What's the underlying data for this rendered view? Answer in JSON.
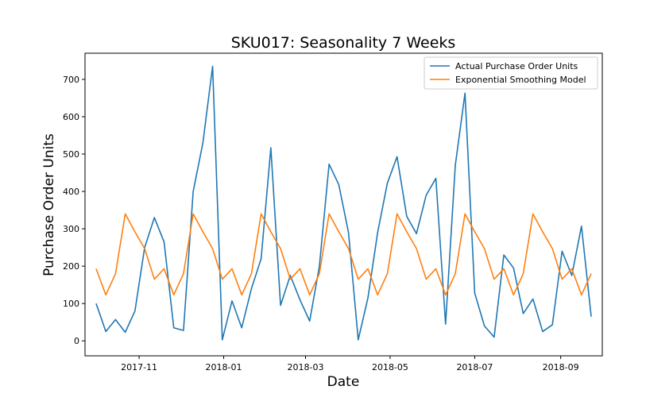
{
  "chart_data": {
    "type": "line",
    "title": "SKU017: Seasonality 7 Weeks",
    "xlabel": "Date",
    "ylabel": "Purchase Order Units",
    "x": [
      "2017-10-01",
      "2017-10-08",
      "2017-10-15",
      "2017-10-22",
      "2017-10-29",
      "2017-11-05",
      "2017-11-12",
      "2017-11-19",
      "2017-11-26",
      "2017-12-03",
      "2017-12-10",
      "2017-12-17",
      "2017-12-24",
      "2017-12-31",
      "2018-01-07",
      "2018-01-14",
      "2018-01-21",
      "2018-01-28",
      "2018-02-04",
      "2018-02-11",
      "2018-02-18",
      "2018-02-25",
      "2018-03-04",
      "2018-03-11",
      "2018-03-18",
      "2018-03-25",
      "2018-04-01",
      "2018-04-08",
      "2018-04-15",
      "2018-04-22",
      "2018-04-29",
      "2018-05-06",
      "2018-05-13",
      "2018-05-20",
      "2018-05-27",
      "2018-06-03",
      "2018-06-10",
      "2018-06-17",
      "2018-06-24",
      "2018-07-01",
      "2018-07-08",
      "2018-07-15",
      "2018-07-22",
      "2018-07-29",
      "2018-08-05",
      "2018-08-12",
      "2018-08-19",
      "2018-08-26",
      "2018-09-02",
      "2018-09-09",
      "2018-09-16",
      "2018-09-23"
    ],
    "series": [
      {
        "name": "Actual Purchase Order Units",
        "color": "#1f77b4",
        "values": [
          100,
          25,
          57,
          23,
          80,
          250,
          330,
          265,
          35,
          28,
          400,
          530,
          735,
          3,
          107,
          35,
          140,
          220,
          517,
          95,
          175,
          110,
          53,
          200,
          473,
          418,
          290,
          3,
          115,
          290,
          422,
          493,
          333,
          287,
          390,
          435,
          45,
          470,
          663,
          128,
          40,
          10,
          230,
          195,
          73,
          112,
          25,
          43,
          240,
          175,
          307,
          65
        ]
      },
      {
        "name": "Exponential Smoothing Model",
        "color": "#ff7f0e",
        "values": [
          193,
          123,
          180,
          340,
          292,
          247,
          165,
          193,
          123,
          180,
          340,
          292,
          247,
          165,
          193,
          123,
          180,
          340,
          292,
          247,
          165,
          193,
          123,
          180,
          340,
          292,
          247,
          165,
          193,
          123,
          180,
          340,
          292,
          247,
          165,
          193,
          123,
          180,
          340,
          292,
          247,
          165,
          193,
          123,
          180,
          340,
          292,
          247,
          165,
          193,
          123,
          180
        ]
      }
    ],
    "xticks": [
      "2017-11",
      "2018-01",
      "2018-03",
      "2018-05",
      "2018-07",
      "2018-09"
    ],
    "xtick_dates": [
      "2017-11-01",
      "2018-01-01",
      "2018-03-01",
      "2018-05-01",
      "2018-07-01",
      "2018-09-01"
    ],
    "yticks": [
      0,
      100,
      200,
      300,
      400,
      500,
      600,
      700
    ],
    "ylim": [
      -40,
      770
    ],
    "xlim": [
      "2017-09-23",
      "2018-10-01"
    ],
    "grid": false,
    "legend": "top-right"
  }
}
